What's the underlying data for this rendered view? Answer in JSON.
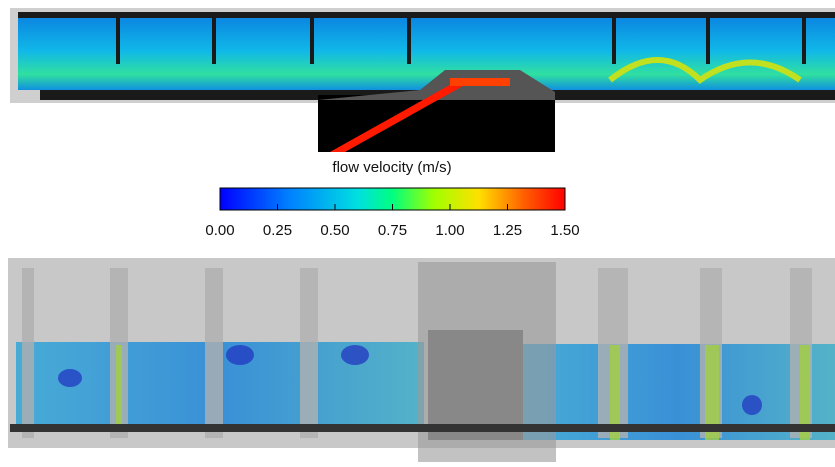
{
  "colorbar": {
    "title": "flow velocity (m/s)",
    "range": [
      0,
      1.5
    ],
    "ticks": [
      {
        "value": 0,
        "label": "0.00"
      },
      {
        "value": 0.25,
        "label": "0.25"
      },
      {
        "value": 0.5,
        "label": "0.50"
      },
      {
        "value": 0.75,
        "label": "0.75"
      },
      {
        "value": 1,
        "label": "1.00"
      },
      {
        "value": 1.25,
        "label": "1.25"
      },
      {
        "value": 1.5,
        "label": "1.50"
      }
    ]
  }
}
